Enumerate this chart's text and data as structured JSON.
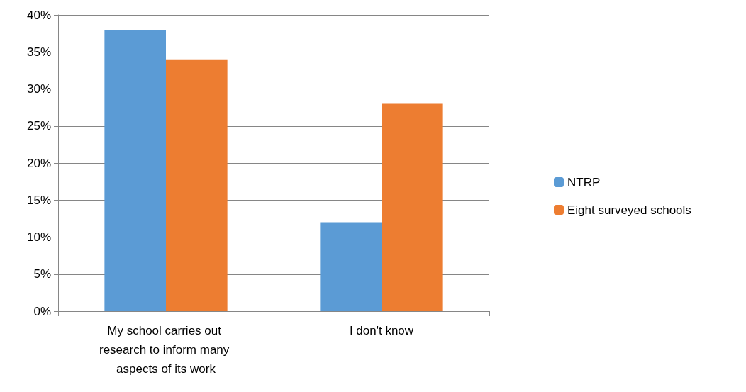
{
  "chart_data": {
    "type": "bar",
    "categories": [
      "My school carries out research to inform many aspects of its work",
      "I don't know"
    ],
    "series": [
      {
        "name": "NTRP",
        "color": "#5b9bd5",
        "values": [
          38,
          12
        ]
      },
      {
        "name": "Eight surveyed schools",
        "color": "#ed7d31",
        "values": [
          34,
          28
        ]
      }
    ],
    "ylim": [
      0,
      40
    ],
    "yticks": [
      {
        "value": 0,
        "label": "0%"
      },
      {
        "value": 5,
        "label": "5%"
      },
      {
        "value": 10,
        "label": "10%"
      },
      {
        "value": 15,
        "label": "15%"
      },
      {
        "value": 20,
        "label": "20%"
      },
      {
        "value": 25,
        "label": "25%"
      },
      {
        "value": 30,
        "label": "30%"
      },
      {
        "value": 35,
        "label": "35%"
      },
      {
        "value": 40,
        "label": "40%"
      }
    ],
    "grid": "y",
    "legend": "right"
  }
}
